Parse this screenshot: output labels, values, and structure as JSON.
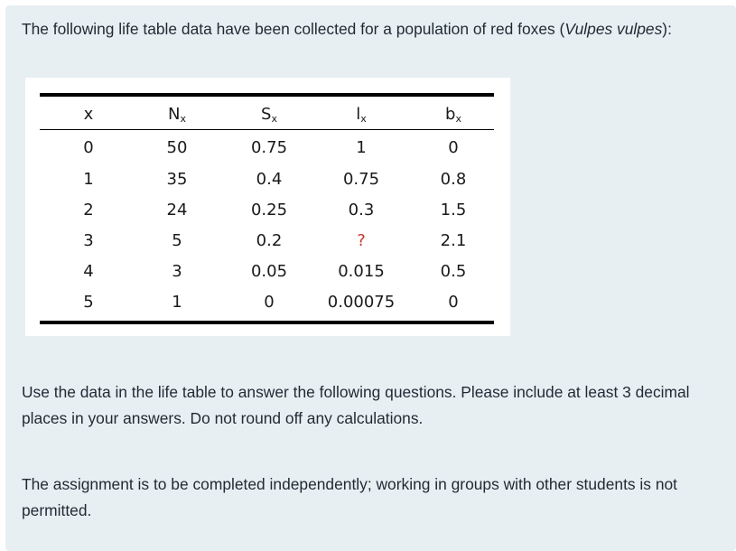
{
  "intro": {
    "before": "The following life table data have been collected for a population of red foxes (",
    "species": "Vulpes vulpes",
    "after": "):"
  },
  "life_table": {
    "headers": [
      {
        "main": "x",
        "sub": ""
      },
      {
        "main": "N",
        "sub": "x"
      },
      {
        "main": "S",
        "sub": "x"
      },
      {
        "main": "l",
        "sub": "x"
      },
      {
        "main": "b",
        "sub": "x"
      }
    ],
    "rows": [
      [
        "0",
        "50",
        "0.75",
        "1",
        "0"
      ],
      [
        "1",
        "35",
        "0.4",
        "0.75",
        "0.8"
      ],
      [
        "2",
        "24",
        "0.25",
        "0.3",
        "1.5"
      ],
      [
        "3",
        "5",
        "0.2",
        "?",
        "2.1"
      ],
      [
        "4",
        "3",
        "0.05",
        "0.015",
        "0.5"
      ],
      [
        "5",
        "1",
        "0",
        "0.00075",
        "0"
      ]
    ],
    "unknown_color": "#c0392b"
  },
  "question_text": "Use the data in the life table to answer the following questions. Please include at least 3 decimal places in your answers. Do not round off any calculations.",
  "policy_text": "The assignment is to be completed independently; working in groups with other students is not permitted."
}
